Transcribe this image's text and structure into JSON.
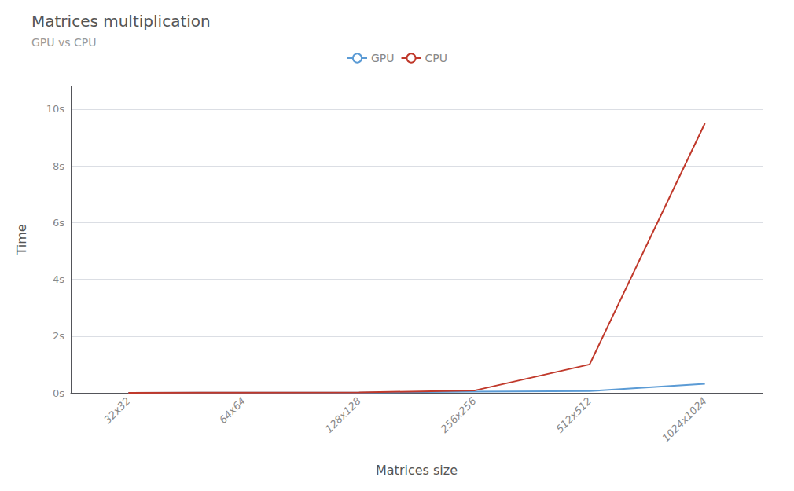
{
  "chart_data": {
    "type": "line",
    "title": "Matrices multiplication",
    "subtitle": "GPU vs CPU",
    "xlabel": "Matrices size",
    "ylabel": "Time",
    "categories": [
      "32x32",
      "64x64",
      "128x128",
      "256x256",
      "512x512",
      "1024x1024"
    ],
    "series": [
      {
        "name": "GPU",
        "color": "#5b9bd5",
        "values": [
          0.003,
          0.005,
          0.01,
          0.04,
          0.06,
          0.32
        ]
      },
      {
        "name": "CPU",
        "color": "#c0392b",
        "values": [
          0.001,
          0.005,
          0.015,
          0.08,
          1.0,
          9.5
        ]
      }
    ],
    "ylim": [
      0,
      10.8
    ],
    "yticks": [
      {
        "value": 0,
        "label": "0s"
      },
      {
        "value": 2,
        "label": "2s"
      },
      {
        "value": 4,
        "label": "4s"
      },
      {
        "value": 6,
        "label": "6s"
      },
      {
        "value": 8,
        "label": "8s"
      },
      {
        "value": 10,
        "label": "10s"
      }
    ],
    "grid": true,
    "legend": "top"
  }
}
